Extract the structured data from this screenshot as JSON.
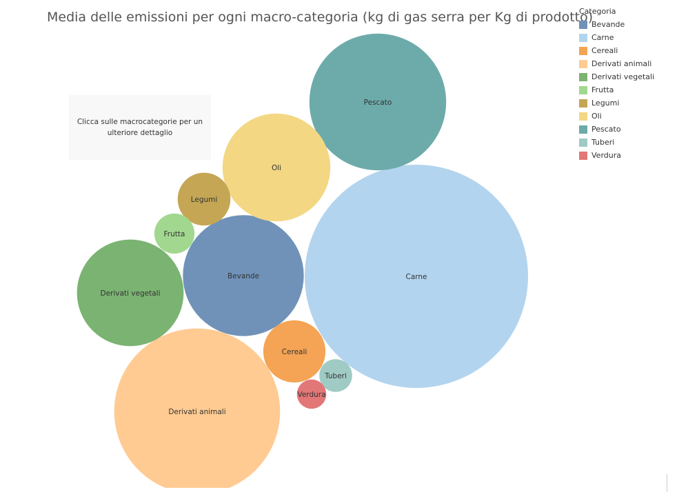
{
  "chart_data": {
    "type": "bubble",
    "title": "Media delle emissioni per ogni macro-categoria (kg di gas serra per Kg di prodotto)",
    "note": "Clicca sulle macrocategorie per un ulteriore dettaglio",
    "legend": {
      "title": "Categoria",
      "placement": "top-right"
    },
    "series": [
      {
        "name": "Bevande",
        "color": "#7092b8",
        "value": 6.8
      },
      {
        "name": "Carne",
        "color": "#b3d4ee",
        "value": 23.2
      },
      {
        "name": "Cereali",
        "color": "#f4a454",
        "value": 1.8
      },
      {
        "name": "Derivati animali",
        "color": "#ffcb92",
        "value": 12.8
      },
      {
        "name": "Derivati vegetali",
        "color": "#7bb372",
        "value": 5.3
      },
      {
        "name": "Frutta",
        "color": "#a2d78f",
        "value": 0.75
      },
      {
        "name": "Legumi",
        "color": "#c4a654",
        "value": 1.3
      },
      {
        "name": "Oli",
        "color": "#f3d783",
        "value": 5.4
      },
      {
        "name": "Pescato",
        "color": "#6dabaa",
        "value": 8.7
      },
      {
        "name": "Tuberi",
        "color": "#a0cbc5",
        "value": 0.5
      },
      {
        "name": "Verdura",
        "color": "#e37777",
        "value": 0.4
      }
    ]
  }
}
